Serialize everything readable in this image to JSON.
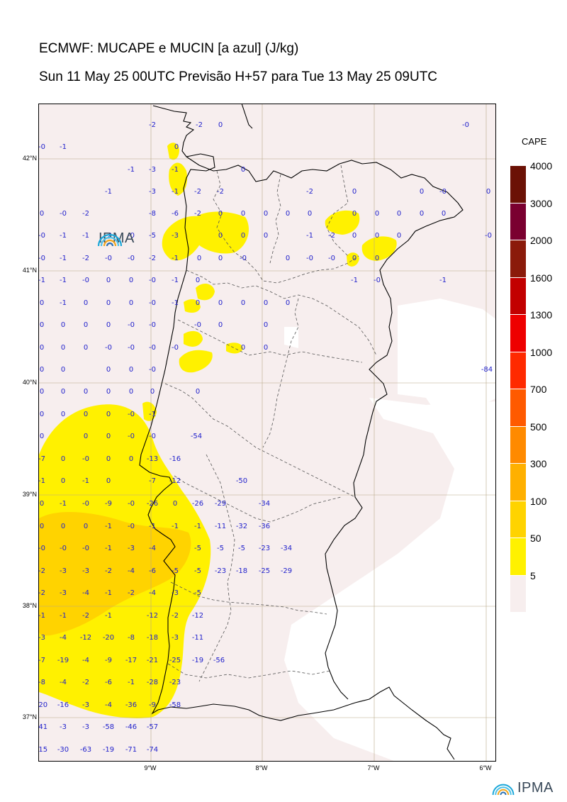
{
  "title_line1": "ECMWF: MUCAPE e MUCIN [a azul] (J/kg)",
  "title_line2": "Sun 11 May 25 00UTC Previsão H+57 para Tue 13 May 25 09UTC",
  "logo_text": "IPMA",
  "colorbar": {
    "title": "CAPE",
    "levels": [
      {
        "label": "4000",
        "color": "#6b1105"
      },
      {
        "label": "3000",
        "color": "#7a0030"
      },
      {
        "label": "2000",
        "color": "#8b1a0a"
      },
      {
        "label": "1600",
        "color": "#c20000"
      },
      {
        "label": "1300",
        "color": "#ee0000"
      },
      {
        "label": "1000",
        "color": "#ff2a00"
      },
      {
        "label": "700",
        "color": "#ff5a00"
      },
      {
        "label": "500",
        "color": "#ff8a00"
      },
      {
        "label": "300",
        "color": "#ffb000"
      },
      {
        "label": "100",
        "color": "#ffd300"
      },
      {
        "label": "50",
        "color": "#fff100"
      },
      {
        "label": "5",
        "color": "#f7eeee"
      }
    ]
  },
  "lat_labels": [
    "42°N",
    "41°N",
    "40°N",
    "39°N",
    "38°N",
    "37°N"
  ],
  "lon_labels": [
    "9°W",
    "8°W",
    "7°W",
    "6°W"
  ],
  "mucin_values": [
    [
      "-2",
      214,
      174
    ],
    [
      "-2",
      280,
      174
    ],
    [
      "0",
      310,
      174
    ],
    [
      "-0",
      656,
      174
    ],
    [
      "-0",
      58,
      205
    ],
    [
      "-1",
      88,
      205
    ],
    [
      "0",
      248,
      205
    ],
    [
      "-1",
      184,
      237
    ],
    [
      "-3",
      214,
      237
    ],
    [
      "-1",
      246,
      237
    ],
    [
      "0",
      342,
      237
    ],
    [
      "-1",
      152,
      268
    ],
    [
      "-3",
      214,
      268
    ],
    [
      "-1",
      246,
      268
    ],
    [
      "-2",
      278,
      268
    ],
    [
      "-2",
      310,
      268
    ],
    [
      "-2",
      436,
      268
    ],
    [
      "0",
      499,
      268
    ],
    [
      "0",
      594,
      268
    ],
    [
      "-0",
      624,
      268
    ],
    [
      "0",
      688,
      268
    ],
    [
      "0",
      58,
      299
    ],
    [
      "-0",
      88,
      299
    ],
    [
      "-2",
      120,
      299
    ],
    [
      "-8",
      214,
      299
    ],
    [
      "-6",
      246,
      299
    ],
    [
      "-2",
      278,
      299
    ],
    [
      "0",
      310,
      299
    ],
    [
      "0",
      342,
      299
    ],
    [
      "0",
      374,
      299
    ],
    [
      "0",
      405,
      299
    ],
    [
      "0",
      436,
      299
    ],
    [
      "0",
      499,
      299
    ],
    [
      "0",
      531,
      299
    ],
    [
      "0",
      562,
      299
    ],
    [
      "0",
      594,
      299
    ],
    [
      "0",
      625,
      299
    ],
    [
      "-0",
      58,
      330
    ],
    [
      "-1",
      88,
      330
    ],
    [
      "-1",
      120,
      330
    ],
    [
      "-2",
      152,
      330
    ],
    [
      "-0",
      184,
      330
    ],
    [
      "-5",
      214,
      330
    ],
    [
      "-3",
      246,
      330
    ],
    [
      "0",
      310,
      330
    ],
    [
      "0",
      342,
      330
    ],
    [
      "0",
      374,
      330
    ],
    [
      "-1",
      436,
      330
    ],
    [
      "-2",
      467,
      330
    ],
    [
      "0",
      499,
      330
    ],
    [
      "0",
      531,
      330
    ],
    [
      "0",
      562,
      330
    ],
    [
      "-0",
      688,
      330
    ],
    [
      "-0",
      58,
      362
    ],
    [
      "-1",
      88,
      362
    ],
    [
      "-2",
      120,
      362
    ],
    [
      "-0",
      152,
      362
    ],
    [
      "-0",
      184,
      362
    ],
    [
      "-2",
      214,
      362
    ],
    [
      "-1",
      246,
      362
    ],
    [
      "0",
      280,
      362
    ],
    [
      "0",
      310,
      362
    ],
    [
      "-0",
      342,
      362
    ],
    [
      "0",
      405,
      362
    ],
    [
      "-0",
      436,
      362
    ],
    [
      "-0",
      467,
      362
    ],
    [
      "0",
      499,
      362
    ],
    [
      "0",
      531,
      362
    ],
    [
      "-1",
      58,
      393
    ],
    [
      "-1",
      88,
      393
    ],
    [
      "-0",
      120,
      393
    ],
    [
      "0",
      152,
      393
    ],
    [
      "0",
      184,
      393
    ],
    [
      "-0",
      214,
      393
    ],
    [
      "-1",
      246,
      393
    ],
    [
      "0",
      278,
      393
    ],
    [
      "-1",
      499,
      393
    ],
    [
      "-0",
      531,
      393
    ],
    [
      "-1",
      624,
      393
    ],
    [
      "0",
      58,
      425
    ],
    [
      "-1",
      88,
      425
    ],
    [
      "0",
      120,
      425
    ],
    [
      "0",
      152,
      425
    ],
    [
      "0",
      184,
      425
    ],
    [
      "-0",
      214,
      425
    ],
    [
      "-1",
      246,
      425
    ],
    [
      "0",
      278,
      425
    ],
    [
      "0",
      310,
      425
    ],
    [
      "0",
      342,
      425
    ],
    [
      "0",
      374,
      425
    ],
    [
      "0",
      405,
      425
    ],
    [
      "0",
      58,
      456
    ],
    [
      "0",
      88,
      456
    ],
    [
      "0",
      120,
      456
    ],
    [
      "0",
      152,
      456
    ],
    [
      "-0",
      184,
      456
    ],
    [
      "-0",
      214,
      456
    ],
    [
      "-0",
      278,
      456
    ],
    [
      "0",
      310,
      456
    ],
    [
      "0",
      374,
      456
    ],
    [
      "0",
      58,
      488
    ],
    [
      "0",
      88,
      488
    ],
    [
      "0",
      120,
      488
    ],
    [
      "-0",
      152,
      488
    ],
    [
      "-0",
      184,
      488
    ],
    [
      "-0",
      214,
      488
    ],
    [
      "-0",
      246,
      488
    ],
    [
      "0",
      342,
      488
    ],
    [
      "0",
      374,
      488
    ],
    [
      "0",
      58,
      519
    ],
    [
      "0",
      88,
      519
    ],
    [
      "0",
      152,
      519
    ],
    [
      "0",
      184,
      519
    ],
    [
      "-0",
      214,
      519
    ],
    [
      "-84",
      686,
      519
    ],
    [
      "0",
      58,
      550
    ],
    [
      "0",
      88,
      550
    ],
    [
      "0",
      120,
      550
    ],
    [
      "0",
      152,
      550
    ],
    [
      "0",
      184,
      550
    ],
    [
      "0",
      214,
      550
    ],
    [
      "0",
      278,
      550
    ],
    [
      "0",
      58,
      582
    ],
    [
      "0",
      88,
      582
    ],
    [
      "0",
      120,
      582
    ],
    [
      "0",
      152,
      582
    ],
    [
      "-0",
      184,
      582
    ],
    [
      "-1",
      214,
      582
    ],
    [
      "0",
      58,
      613
    ],
    [
      "0",
      120,
      613
    ],
    [
      "0",
      152,
      613
    ],
    [
      "-0",
      184,
      613
    ],
    [
      "-0",
      214,
      613
    ],
    [
      "-54",
      276,
      613
    ],
    [
      "-7",
      58,
      645
    ],
    [
      "0",
      88,
      645
    ],
    [
      "-0",
      120,
      645
    ],
    [
      "0",
      152,
      645
    ],
    [
      "0",
      184,
      645
    ],
    [
      "-13",
      214,
      645
    ],
    [
      "-16",
      246,
      645
    ],
    [
      "-1",
      58,
      676
    ],
    [
      "0",
      88,
      676
    ],
    [
      "-1",
      120,
      676
    ],
    [
      "0",
      152,
      676
    ],
    [
      "-7",
      214,
      676
    ],
    [
      "-12",
      246,
      676
    ],
    [
      "-50",
      340,
      676
    ],
    [
      "0",
      58,
      708
    ],
    [
      "-1",
      88,
      708
    ],
    [
      "-0",
      120,
      708
    ],
    [
      "-9",
      152,
      708
    ],
    [
      "-0",
      184,
      708
    ],
    [
      "-26",
      214,
      708
    ],
    [
      "0",
      246,
      708
    ],
    [
      "-26",
      278,
      708
    ],
    [
      "-29",
      310,
      708
    ],
    [
      "-34",
      372,
      708
    ],
    [
      "0",
      58,
      740
    ],
    [
      "0",
      88,
      740
    ],
    [
      "0",
      120,
      740
    ],
    [
      "-1",
      152,
      740
    ],
    [
      "-0",
      184,
      740
    ],
    [
      "-1",
      214,
      740
    ],
    [
      "-1",
      246,
      740
    ],
    [
      "-1",
      278,
      740
    ],
    [
      "-11",
      310,
      740
    ],
    [
      "-32",
      340,
      740
    ],
    [
      "-36",
      372,
      740
    ],
    [
      "-0",
      58,
      771
    ],
    [
      "-0",
      88,
      771
    ],
    [
      "-0",
      120,
      771
    ],
    [
      "-1",
      152,
      771
    ],
    [
      "-3",
      184,
      771
    ],
    [
      "-4",
      214,
      771
    ],
    [
      "-5",
      278,
      771
    ],
    [
      "-5",
      310,
      771
    ],
    [
      "-5",
      340,
      771
    ],
    [
      "-23",
      372,
      771
    ],
    [
      "-34",
      403,
      771
    ],
    [
      "-2",
      58,
      803
    ],
    [
      "-3",
      88,
      803
    ],
    [
      "-3",
      120,
      803
    ],
    [
      "-2",
      152,
      803
    ],
    [
      "-4",
      184,
      803
    ],
    [
      "-6",
      214,
      803
    ],
    [
      "-5",
      246,
      803
    ],
    [
      "-5",
      278,
      803
    ],
    [
      "-23",
      310,
      803
    ],
    [
      "-18",
      340,
      803
    ],
    [
      "-25",
      372,
      803
    ],
    [
      "-29",
      403,
      803
    ],
    [
      "-2",
      58,
      834
    ],
    [
      "-3",
      88,
      834
    ],
    [
      "-4",
      120,
      834
    ],
    [
      "-1",
      152,
      834
    ],
    [
      "-2",
      184,
      834
    ],
    [
      "-4",
      214,
      834
    ],
    [
      "-3",
      246,
      834
    ],
    [
      "-5",
      278,
      834
    ],
    [
      "-1",
      58,
      866
    ],
    [
      "-1",
      88,
      866
    ],
    [
      "-2",
      120,
      866
    ],
    [
      "-1",
      152,
      866
    ],
    [
      "-12",
      214,
      866
    ],
    [
      "-2",
      246,
      866
    ],
    [
      "-12",
      278,
      866
    ],
    [
      "-3",
      58,
      897
    ],
    [
      "-4",
      88,
      897
    ],
    [
      "-12",
      120,
      897
    ],
    [
      "-20",
      152,
      897
    ],
    [
      "-8",
      184,
      897
    ],
    [
      "-18",
      214,
      897
    ],
    [
      "-3",
      246,
      897
    ],
    [
      "-11",
      278,
      897
    ],
    [
      "-7",
      58,
      929
    ],
    [
      "-19",
      88,
      929
    ],
    [
      "-4",
      120,
      929
    ],
    [
      "-9",
      152,
      929
    ],
    [
      "-17",
      184,
      929
    ],
    [
      "-21",
      214,
      929
    ],
    [
      "-25",
      246,
      929
    ],
    [
      "-19",
      278,
      929
    ],
    [
      "-56",
      308,
      929
    ],
    [
      "-8",
      58,
      960
    ],
    [
      "-4",
      88,
      960
    ],
    [
      "-2",
      120,
      960
    ],
    [
      "-6",
      152,
      960
    ],
    [
      "-1",
      184,
      960
    ],
    [
      "-28",
      214,
      960
    ],
    [
      "-23",
      246,
      960
    ],
    [
      "-20",
      58,
      992
    ],
    [
      "-16",
      88,
      992
    ],
    [
      "-3",
      120,
      992
    ],
    [
      "-4",
      152,
      992
    ],
    [
      "-36",
      184,
      992
    ],
    [
      "-9",
      214,
      992
    ],
    [
      "-58",
      246,
      992
    ],
    [
      "-41",
      58,
      1023
    ],
    [
      "-3",
      88,
      1023
    ],
    [
      "-3",
      120,
      1023
    ],
    [
      "-58",
      152,
      1023
    ],
    [
      "-46",
      184,
      1023
    ],
    [
      "-57",
      214,
      1023
    ],
    [
      "-15",
      58,
      1055
    ],
    [
      "-30",
      88,
      1055
    ],
    [
      "-63",
      120,
      1055
    ],
    [
      "-19",
      152,
      1055
    ],
    [
      "-71",
      184,
      1055
    ],
    [
      "-74",
      214,
      1055
    ]
  ]
}
